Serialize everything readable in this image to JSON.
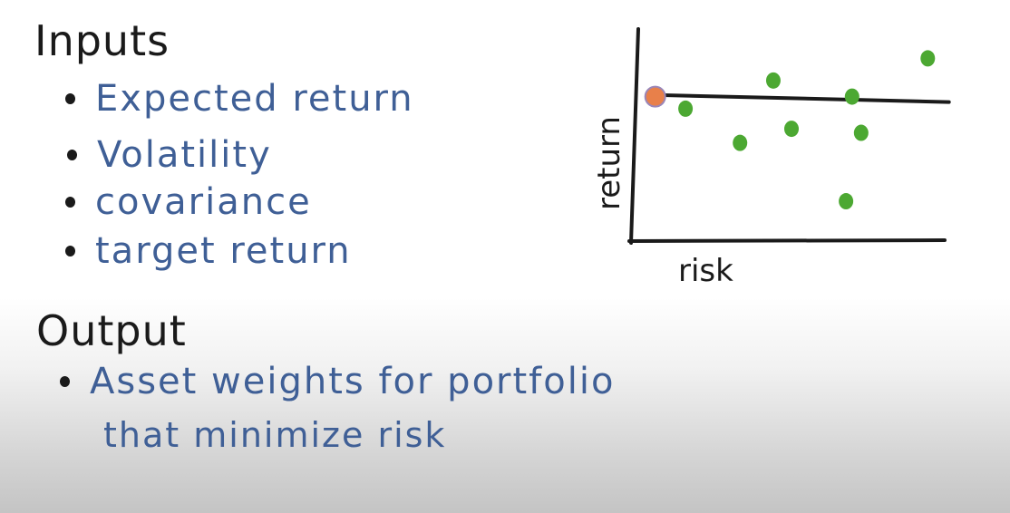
{
  "inputs": {
    "heading": "Inputs",
    "items": [
      "Expected return",
      "Volatility",
      "covariance",
      "target return"
    ]
  },
  "output": {
    "heading": "Output",
    "line1": "Asset weights for portfolio",
    "line2": "that minimize risk"
  },
  "chart_data": {
    "type": "scatter",
    "xlabel": "risk",
    "ylabel": "return",
    "grid": false,
    "colors": {
      "points": "#4ca832",
      "highlight": "#e8804a",
      "axes": "#1a1a1a"
    },
    "series": [
      {
        "points": [
          {
            "x": 1.5,
            "y": 6.4
          },
          {
            "x": 3.3,
            "y": 4.7
          },
          {
            "x": 4.4,
            "y": 7.8
          },
          {
            "x": 5.0,
            "y": 5.4
          },
          {
            "x": 7.0,
            "y": 7.0
          },
          {
            "x": 7.3,
            "y": 5.2
          },
          {
            "x": 6.8,
            "y": 1.8
          },
          {
            "x": 9.5,
            "y": 8.9
          }
        ]
      },
      {
        "points": [
          {
            "x": 0.5,
            "y": 7.0
          }
        ]
      }
    ],
    "target_return_line": 7.0,
    "xlim": [
      0,
      10
    ],
    "ylim": [
      0,
      10
    ]
  }
}
